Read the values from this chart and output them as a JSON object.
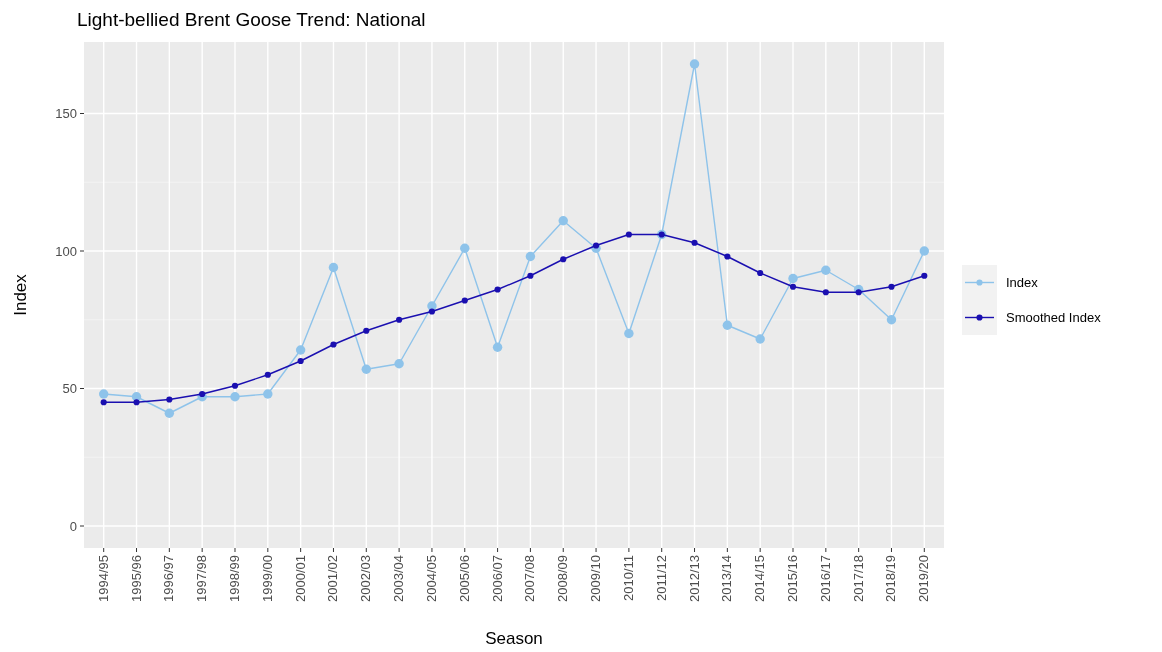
{
  "chart_data": {
    "type": "line",
    "title": "Light-bellied Brent Goose Trend: National",
    "xlabel": "Season",
    "ylabel": "Index",
    "categories": [
      "1994/95",
      "1995/96",
      "1996/97",
      "1997/98",
      "1998/99",
      "1999/00",
      "2000/01",
      "2001/02",
      "2002/03",
      "2003/04",
      "2004/05",
      "2005/06",
      "2006/07",
      "2007/08",
      "2008/09",
      "2009/10",
      "2010/11",
      "2011/12",
      "2012/13",
      "2013/14",
      "2014/15",
      "2015/16",
      "2016/17",
      "2017/18",
      "2018/19",
      "2019/20"
    ],
    "series": [
      {
        "name": "Index",
        "color": "#8ec3ea",
        "values": [
          48,
          47,
          41,
          47,
          47,
          48,
          64,
          94,
          57,
          59,
          80,
          101,
          65,
          98,
          111,
          101,
          70,
          106,
          168,
          73,
          68,
          90,
          93,
          86,
          75,
          100
        ]
      },
      {
        "name": "Smoothed Index",
        "color": "#1a0fb0",
        "values": [
          45,
          45,
          46,
          48,
          51,
          55,
          60,
          66,
          71,
          75,
          78,
          82,
          86,
          91,
          97,
          102,
          106,
          106,
          103,
          98,
          92,
          87,
          85,
          85,
          87,
          91
        ]
      }
    ],
    "ylim": [
      -8,
      176
    ],
    "yticks": [
      0,
      50,
      100,
      150
    ],
    "grid": true,
    "legend": "right",
    "marker": "circle"
  }
}
